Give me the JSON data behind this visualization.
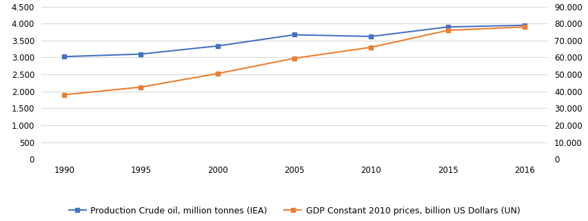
{
  "years": [
    1990,
    1995,
    2000,
    2005,
    2010,
    2015,
    2016
  ],
  "oil_production": [
    3025,
    3100,
    3340,
    3670,
    3620,
    3900,
    3950
  ],
  "gdp": [
    38000,
    42500,
    50500,
    59500,
    66000,
    76000,
    78000
  ],
  "oil_color": "#4472c4",
  "gdp_color": "#ed7d31",
  "oil_label": "Production Crude oil, million tonnes (IEA)",
  "gdp_label": "GDP Constant 2010 prices, billion US Dollars (UN)",
  "left_ylim": [
    0,
    4500
  ],
  "right_ylim": [
    0,
    90000
  ],
  "left_yticks": [
    0,
    500,
    1000,
    1500,
    2000,
    2500,
    3000,
    3500,
    4000,
    4500
  ],
  "right_yticks": [
    0,
    10000,
    20000,
    30000,
    40000,
    50000,
    60000,
    70000,
    80000,
    90000
  ],
  "left_yticklabels": [
    "0",
    "500",
    "1.000",
    "1.500",
    "2.000",
    "2.500",
    "3.000",
    "3.500",
    "4.000",
    "4.500"
  ],
  "right_yticklabels": [
    "0",
    "10.000",
    "20.000",
    "30.000",
    "40.000",
    "50.000",
    "60.000",
    "70.000",
    "80.000",
    "90.000"
  ],
  "background_color": "#ffffff",
  "grid_color": "#d9d9d9",
  "marker": "s",
  "marker_size": 5,
  "line_width": 1.5,
  "tick_fontsize": 8.5,
  "legend_fontsize": 9
}
